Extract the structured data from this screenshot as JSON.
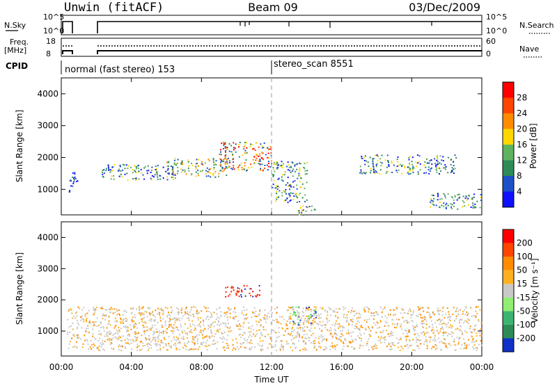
{
  "header": {
    "left_title": "Unwin (fitACF)",
    "center_title": "Beam 09",
    "right_title": "03/Dec/2009"
  },
  "summary": {
    "nsky_label": "N.Sky",
    "nsearch_label": "N.Search",
    "freq_label_line1": "Freq.",
    "freq_label_line2": "[MHz]",
    "nave_label": "Nave",
    "cpid_label": "CPID",
    "sky_ticks_left": [
      "10^5",
      "10^0"
    ],
    "sky_ticks_right": [
      "10^5",
      "10^0"
    ],
    "freq_ticks_left": [
      "18",
      "8"
    ],
    "nave_ticks_right": [
      "60",
      "0"
    ],
    "cpid_segments": [
      {
        "label": "normal (fast stereo) 153",
        "start_hour": 0.0
      },
      {
        "label": "stereo_scan 8551",
        "start_hour": 12.0
      }
    ]
  },
  "chart_data": [
    {
      "type": "heatmap",
      "panel": "power",
      "xlabel": "",
      "ylabel": "Slant Range [km]",
      "xlim": [
        0,
        24
      ],
      "ylim": [
        200,
        4500
      ],
      "yticks": [
        "1000",
        "2000",
        "3000",
        "4000"
      ],
      "colorbar": {
        "label": "Power [dB]",
        "ticks": [
          "4",
          "8",
          "12",
          "16",
          "20",
          "24",
          "28"
        ],
        "colors": [
          "#1010ff",
          "#1e50c8",
          "#2e8b57",
          "#5fb35f",
          "#ffd700",
          "#ff8c00",
          "#ff4500",
          "#ff0000"
        ]
      },
      "echo_regions": [
        {
          "t": [
            0.4,
            0.9
          ],
          "r": [
            900,
            1600
          ],
          "level": "weak"
        },
        {
          "t": [
            2.3,
            6.5
          ],
          "r": [
            1300,
            1800
          ],
          "level": "moderate"
        },
        {
          "t": [
            6.0,
            9.5
          ],
          "r": [
            1400,
            2000
          ],
          "level": "strong"
        },
        {
          "t": [
            9.0,
            12.0
          ],
          "r": [
            1600,
            2500
          ],
          "level": "strongest"
        },
        {
          "t": [
            12.0,
            14.0
          ],
          "r": [
            600,
            1900
          ],
          "level": "moderate"
        },
        {
          "t": [
            13.5,
            14.5
          ],
          "r": [
            200,
            500
          ],
          "level": "strong"
        },
        {
          "t": [
            17.0,
            22.5
          ],
          "r": [
            1500,
            2100
          ],
          "level": "moderate"
        },
        {
          "t": [
            21.0,
            24.0
          ],
          "r": [
            400,
            900
          ],
          "level": "moderate"
        }
      ]
    },
    {
      "type": "heatmap",
      "panel": "velocity",
      "xlabel": "Time UT",
      "ylabel": "Slant Range [km]",
      "xlim": [
        0,
        24
      ],
      "ylim": [
        200,
        4500
      ],
      "xticks": [
        "00:00",
        "04:00",
        "08:00",
        "12:00",
        "16:00",
        "20:00",
        "00:00"
      ],
      "yticks": [
        "1000",
        "2000",
        "3000",
        "4000"
      ],
      "colorbar": {
        "label": "Velocity [m s⁻¹]",
        "ticks": [
          "200",
          "100",
          "50",
          "15",
          "-15",
          "-50",
          "-100",
          "-200"
        ],
        "colors": [
          "#1030c8",
          "#2e8b57",
          "#3cb371",
          "#90ee70",
          "#c8c8c8",
          "#ffb020",
          "#ff8c00",
          "#ff4500",
          "#ff0000"
        ]
      },
      "echo_regions": [
        {
          "t": [
            0.3,
            24.0
          ],
          "r": [
            400,
            1800
          ],
          "level": "grey"
        },
        {
          "t": [
            9.3,
            11.3
          ],
          "r": [
            2100,
            2500
          ],
          "level": "red"
        },
        {
          "t": [
            13.0,
            14.5
          ],
          "r": [
            1200,
            1800
          ],
          "level": "green"
        }
      ]
    }
  ]
}
